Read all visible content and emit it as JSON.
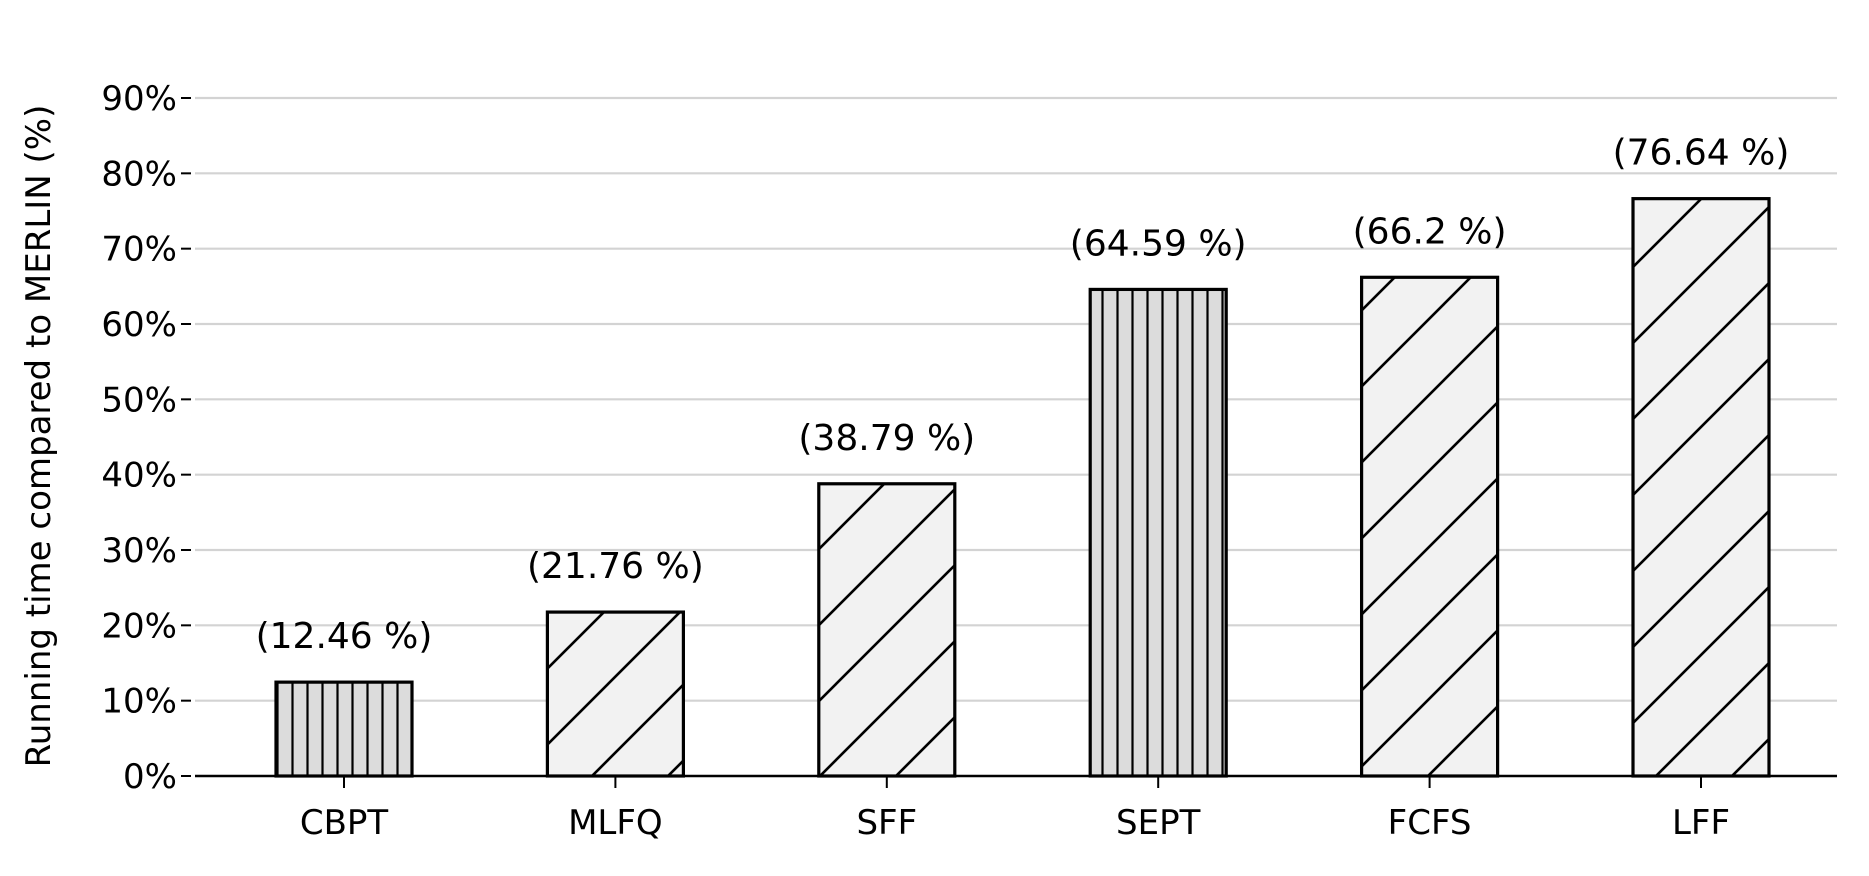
{
  "chart_data": {
    "type": "bar",
    "categories": [
      "CBPT",
      "MLFQ",
      "SFF",
      "SEPT",
      "FCFS",
      "LFF"
    ],
    "values": [
      12.46,
      21.76,
      38.79,
      64.59,
      66.2,
      76.64
    ],
    "data_labels": [
      "(12.46 %)",
      "(21.76 %)",
      "(38.79 %)",
      "(64.59 %)",
      "(66.2 %)",
      "(76.64 %)"
    ],
    "hatch": [
      "vertical",
      "diagonal",
      "diagonal",
      "vertical",
      "diagonal",
      "diagonal"
    ],
    "ylabel": "Running time compared to MERLIN (%)",
    "xlabel": "",
    "ylim": [
      0,
      90
    ],
    "yticks": [
      0,
      10,
      20,
      30,
      40,
      50,
      60,
      70,
      80,
      90
    ],
    "ytick_labels": [
      "0%",
      "10%",
      "20%",
      "30%",
      "40%",
      "50%",
      "60%",
      "70%",
      "80%",
      "90%"
    ],
    "grid": "horizontal",
    "colors": {
      "vertical_fill": "#dcdcdc",
      "diagonal_fill": "#f2f2f2",
      "edge": "#000000",
      "grid": "#d3d3d3"
    }
  }
}
